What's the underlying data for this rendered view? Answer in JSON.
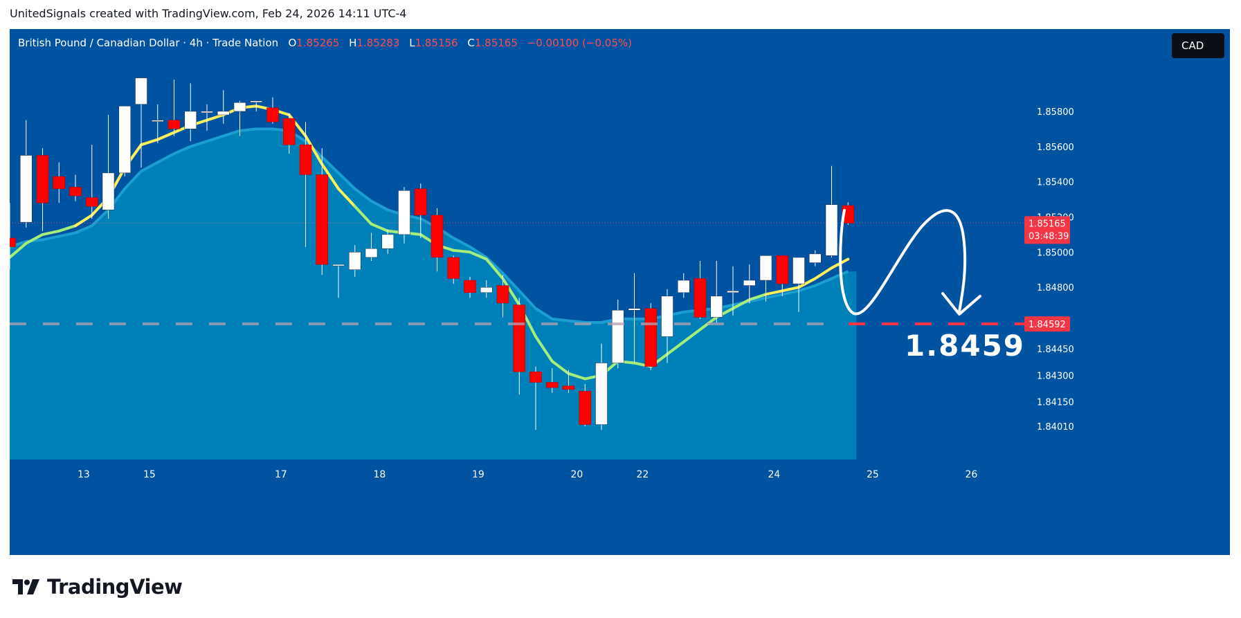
{
  "header": {
    "attribution": "UnitedSignals created with TradingView.com, Feb 24, 2026 14:11 UTC-4"
  },
  "legend": {
    "symbol": "British Pound / Canadian Dollar · 4h · Trade Nation",
    "open_label": "O",
    "open": "1.85265",
    "high_label": "H",
    "high": "1.85283",
    "low_label": "L",
    "low": "1.85156",
    "close_label": "C",
    "close": "1.85165",
    "change": "−0.00100 (−0.05%)"
  },
  "currency_badge": "CAD",
  "price_tag": {
    "price": "1.85165",
    "countdown": "03:48:39"
  },
  "target_tag": "1.84592",
  "annotation_text": "1.8459",
  "logo_text": "TradingView",
  "colors": {
    "background": "#0053a0",
    "area_fill": "#0080b8",
    "area_edge": "#1a9fd0",
    "up_candle": "#ffffff",
    "down_candle": "#ff0000",
    "ema_bright": "#ffef5a",
    "ema_mid": "#a6ee7a",
    "target_line": "#ff3344",
    "price_tag_bg": "#f23645",
    "text_axis": "#ffffff"
  },
  "chart_data": {
    "type": "candlestick",
    "timeframe": "4h",
    "y_axis": {
      "min": 1.839,
      "max": 1.8602,
      "ticks": [
        "1.85800",
        "1.85600",
        "1.85400",
        "1.85200",
        "1.85000",
        "1.84800",
        "1.84450",
        "1.84300",
        "1.84150",
        "1.84010"
      ],
      "tick_values": [
        1.858,
        1.856,
        1.854,
        1.852,
        1.85,
        1.848,
        1.8445,
        1.843,
        1.8415,
        1.8401
      ]
    },
    "x_axis": {
      "labels": [
        "13",
        "15",
        "17",
        "18",
        "19",
        "20",
        "22",
        "24",
        "25",
        "26"
      ],
      "label_index": [
        4.5,
        8.5,
        16.5,
        22.5,
        28.5,
        34.5,
        38.5,
        46.5,
        52.5,
        58.5
      ]
    },
    "candles": [
      {
        "o": 1.8508,
        "h": 1.8528,
        "l": 1.849,
        "c": 1.8503
      },
      {
        "o": 1.8517,
        "h": 1.8575,
        "l": 1.8514,
        "c": 1.8555
      },
      {
        "o": 1.8555,
        "h": 1.8559,
        "l": 1.8512,
        "c": 1.8528
      },
      {
        "o": 1.8543,
        "h": 1.8551,
        "l": 1.8528,
        "c": 1.8536
      },
      {
        "o": 1.8537,
        "h": 1.8544,
        "l": 1.8529,
        "c": 1.8532
      },
      {
        "o": 1.8531,
        "h": 1.8561,
        "l": 1.8519,
        "c": 1.8526
      },
      {
        "o": 1.8524,
        "h": 1.8578,
        "l": 1.8519,
        "c": 1.8545
      },
      {
        "o": 1.8545,
        "h": 1.8582,
        "l": 1.8543,
        "c": 1.8583
      },
      {
        "o": 1.8584,
        "h": 1.8598,
        "l": 1.8548,
        "c": 1.8599
      },
      {
        "o": 1.8575,
        "h": 1.8584,
        "l": 1.8562,
        "c": 1.8575
      },
      {
        "o": 1.8575,
        "h": 1.8598,
        "l": 1.8566,
        "c": 1.857
      },
      {
        "o": 1.857,
        "h": 1.8596,
        "l": 1.8563,
        "c": 1.858
      },
      {
        "o": 1.858,
        "h": 1.8584,
        "l": 1.8569,
        "c": 1.858
      },
      {
        "o": 1.8578,
        "h": 1.8592,
        "l": 1.8573,
        "c": 1.858
      },
      {
        "o": 1.858,
        "h": 1.8586,
        "l": 1.8566,
        "c": 1.8585
      },
      {
        "o": 1.8586,
        "h": 1.8586,
        "l": 1.858,
        "c": 1.8586
      },
      {
        "o": 1.8582,
        "h": 1.8588,
        "l": 1.8573,
        "c": 1.8574
      },
      {
        "o": 1.8576,
        "h": 1.8579,
        "l": 1.8556,
        "c": 1.8561
      },
      {
        "o": 1.8561,
        "h": 1.8574,
        "l": 1.8503,
        "c": 1.8544
      },
      {
        "o": 1.8544,
        "h": 1.8559,
        "l": 1.8487,
        "c": 1.8493
      },
      {
        "o": 1.8493,
        "h": 1.8493,
        "l": 1.8474,
        "c": 1.8493
      },
      {
        "o": 1.849,
        "h": 1.8504,
        "l": 1.8486,
        "c": 1.85
      },
      {
        "o": 1.8497,
        "h": 1.8511,
        "l": 1.8495,
        "c": 1.8502
      },
      {
        "o": 1.8502,
        "h": 1.8513,
        "l": 1.8499,
        "c": 1.851
      },
      {
        "o": 1.851,
        "h": 1.8537,
        "l": 1.8505,
        "c": 1.8535
      },
      {
        "o": 1.8536,
        "h": 1.8539,
        "l": 1.8508,
        "c": 1.8521
      },
      {
        "o": 1.8521,
        "h": 1.8525,
        "l": 1.8489,
        "c": 1.8497
      },
      {
        "o": 1.8497,
        "h": 1.8498,
        "l": 1.8482,
        "c": 1.8485
      },
      {
        "o": 1.8484,
        "h": 1.8486,
        "l": 1.8474,
        "c": 1.8477
      },
      {
        "o": 1.8477,
        "h": 1.8484,
        "l": 1.8474,
        "c": 1.848
      },
      {
        "o": 1.8481,
        "h": 1.8487,
        "l": 1.8463,
        "c": 1.8471
      },
      {
        "o": 1.847,
        "h": 1.8474,
        "l": 1.8419,
        "c": 1.8432
      },
      {
        "o": 1.8432,
        "h": 1.8435,
        "l": 1.8399,
        "c": 1.8426
      },
      {
        "o": 1.8426,
        "h": 1.8434,
        "l": 1.842,
        "c": 1.8423
      },
      {
        "o": 1.8424,
        "h": 1.8433,
        "l": 1.842,
        "c": 1.8422
      },
      {
        "o": 1.8421,
        "h": 1.8425,
        "l": 1.8401,
        "c": 1.8402
      },
      {
        "o": 1.8402,
        "h": 1.8448,
        "l": 1.8399,
        "c": 1.8437
      },
      {
        "o": 1.8437,
        "h": 1.8473,
        "l": 1.8434,
        "c": 1.8467
      },
      {
        "o": 1.8467,
        "h": 1.8488,
        "l": 1.8437,
        "c": 1.8468
      },
      {
        "o": 1.8468,
        "h": 1.8471,
        "l": 1.8433,
        "c": 1.8435
      },
      {
        "o": 1.8452,
        "h": 1.8479,
        "l": 1.8437,
        "c": 1.8475
      },
      {
        "o": 1.8477,
        "h": 1.8488,
        "l": 1.8474,
        "c": 1.8484
      },
      {
        "o": 1.8485,
        "h": 1.8495,
        "l": 1.8462,
        "c": 1.8463
      },
      {
        "o": 1.8463,
        "h": 1.8495,
        "l": 1.846,
        "c": 1.8475
      },
      {
        "o": 1.8477,
        "h": 1.8492,
        "l": 1.8464,
        "c": 1.8478
      },
      {
        "o": 1.8481,
        "h": 1.8493,
        "l": 1.8471,
        "c": 1.8484
      },
      {
        "o": 1.8484,
        "h": 1.8498,
        "l": 1.8472,
        "c": 1.8498
      },
      {
        "o": 1.8498,
        "h": 1.8497,
        "l": 1.8475,
        "c": 1.8482
      },
      {
        "o": 1.8482,
        "h": 1.8496,
        "l": 1.8466,
        "c": 1.8497
      },
      {
        "o": 1.8494,
        "h": 1.8501,
        "l": 1.8492,
        "c": 1.8499
      },
      {
        "o": 1.8498,
        "h": 1.8549,
        "l": 1.8497,
        "c": 1.8527
      },
      {
        "o": 1.85265,
        "h": 1.85283,
        "l": 1.85156,
        "c": 1.85165
      }
    ],
    "ema_fast": [
      1.8497,
      1.8505,
      1.851,
      1.8512,
      1.8515,
      1.8521,
      1.8531,
      1.8548,
      1.8561,
      1.8564,
      1.8568,
      1.8572,
      1.8575,
      1.8578,
      1.8582,
      1.8583,
      1.8581,
      1.8578,
      1.8566,
      1.855,
      1.8536,
      1.8526,
      1.8516,
      1.8512,
      1.8511,
      1.851,
      1.8504,
      1.8501,
      1.85,
      1.8496,
      1.8485,
      1.847,
      1.8452,
      1.8438,
      1.8431,
      1.8428,
      1.843,
      1.8438,
      1.8437,
      1.8435,
      1.8442,
      1.8449,
      1.8456,
      1.8463,
      1.8468,
      1.8473,
      1.8476,
      1.8478,
      1.848,
      1.8485,
      1.8491,
      1.8496
    ],
    "ema_slow": [
      1.8503,
      1.8506,
      1.8507,
      1.8509,
      1.8511,
      1.8515,
      1.8524,
      1.8536,
      1.8546,
      1.8551,
      1.8556,
      1.856,
      1.8563,
      1.8566,
      1.8569,
      1.857,
      1.857,
      1.8569,
      1.8563,
      1.8554,
      1.8545,
      1.8536,
      1.8529,
      1.8524,
      1.8521,
      1.8519,
      1.8514,
      1.8508,
      1.8503,
      1.8497,
      1.8488,
      1.8478,
      1.8468,
      1.8462,
      1.8461,
      1.846,
      1.846,
      1.8462,
      1.8462,
      1.8462,
      1.8464,
      1.8466,
      1.8467,
      1.8468,
      1.847,
      1.8472,
      1.8474,
      1.8476,
      1.8478,
      1.8481,
      1.8485,
      1.8489
    ],
    "target_price": 1.84592,
    "current_price": 1.85165
  }
}
